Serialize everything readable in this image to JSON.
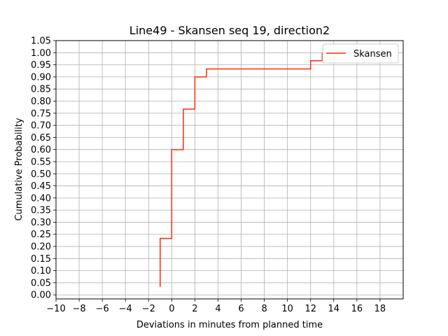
{
  "chart_data": {
    "type": "line",
    "step": true,
    "title": "Line49 - Skansen seq 19, direction2",
    "xlabel": "Deviations in minutes from planned time",
    "ylabel": "Cumulative Probability",
    "xlim": [
      -10,
      20
    ],
    "ylim": [
      -0.0167,
      1.05
    ],
    "xticks": [
      -10,
      -8,
      -6,
      -4,
      -2,
      0,
      2,
      4,
      6,
      8,
      10,
      12,
      14,
      16,
      18
    ],
    "xtick_labels": [
      "−10",
      "−8",
      "−6",
      "−4",
      "−2",
      "0",
      "2",
      "4",
      "6",
      "8",
      "10",
      "12",
      "14",
      "16",
      "18"
    ],
    "yticks": [
      0.0,
      0.05,
      0.1,
      0.15,
      0.2,
      0.25,
      0.3,
      0.35,
      0.4,
      0.45,
      0.5,
      0.55,
      0.6,
      0.65,
      0.7,
      0.75,
      0.8,
      0.85,
      0.9,
      0.95,
      1.0,
      1.05
    ],
    "ytick_labels": [
      "0.00",
      "0.05",
      "0.10",
      "0.15",
      "0.20",
      "0.25",
      "0.30",
      "0.35",
      "0.40",
      "0.45",
      "0.50",
      "0.55",
      "0.60",
      "0.65",
      "0.70",
      "0.75",
      "0.80",
      "0.85",
      "0.90",
      "0.95",
      "1.00",
      "1.05"
    ],
    "grid": true,
    "legend_position": "top-right",
    "series": [
      {
        "name": "Skansen",
        "color": "#ff2a0a",
        "x": [
          -1,
          -1,
          0,
          0,
          1,
          1,
          2,
          2,
          3,
          3,
          12,
          12,
          13,
          13
        ],
        "y": [
          0.033,
          0.233,
          0.233,
          0.6,
          0.6,
          0.767,
          0.767,
          0.9,
          0.9,
          0.933,
          0.933,
          0.967,
          0.967,
          1.0
        ]
      }
    ]
  }
}
